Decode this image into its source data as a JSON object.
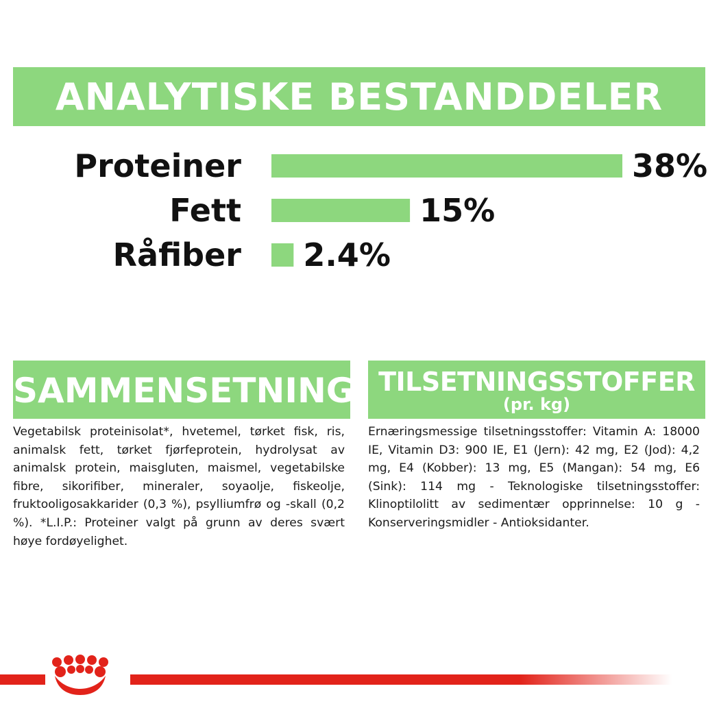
{
  "header": {
    "title": "ANALYTISKE BESTANDDELER"
  },
  "chart_data": {
    "type": "bar",
    "orientation": "horizontal",
    "categories": [
      "Proteiner",
      "Fett",
      "Råfiber"
    ],
    "values": [
      38,
      15,
      2.4
    ],
    "value_labels": [
      "38%",
      "15%",
      "2.4%"
    ],
    "bar_color": "#8dd77e",
    "xlim": [
      0,
      38
    ]
  },
  "composition": {
    "title": "SAMMENSETNING",
    "text": "Vegetabilsk proteinisolat*, hvetemel, tørket fisk, ris, animalsk fett, tørket fjørfeprotein, hydrolysat av animalsk protein, maisgluten, maismel, vegetabilske fibre, sikorifiber, mineraler, soyaolje, fiskeolje, fruktooligosakkarider (0,3 %), psylliumfrø og -skall (0,2 %). *L.I.P.: Proteiner valgt på grunn av deres svært høye fordøyelighet."
  },
  "additives": {
    "title": "TILSETNINGSSTOFFER",
    "subtitle": "(pr. kg)",
    "text": "Ernæringsmessige tilsetningsstoffer: Vitamin A: 18000 IE, Vitamin D3: 900 IE, E1 (Jern): 42 mg, E2 (Jod): 4,2 mg, E4 (Kobber): 13 mg, E5 (Mangan): 54 mg, E6 (Sink): 114 mg - Teknologiske tilsetningsstoffer: Klinoptilolitt av sedimentær opprinnelse: 10 g - Konserveringsmidler - Antioksidanter."
  },
  "colors": {
    "accent_green": "#8dd77e",
    "brand_red": "#e2231a"
  },
  "footer": {
    "logo_icon": "royal-canin-crown-logo"
  }
}
